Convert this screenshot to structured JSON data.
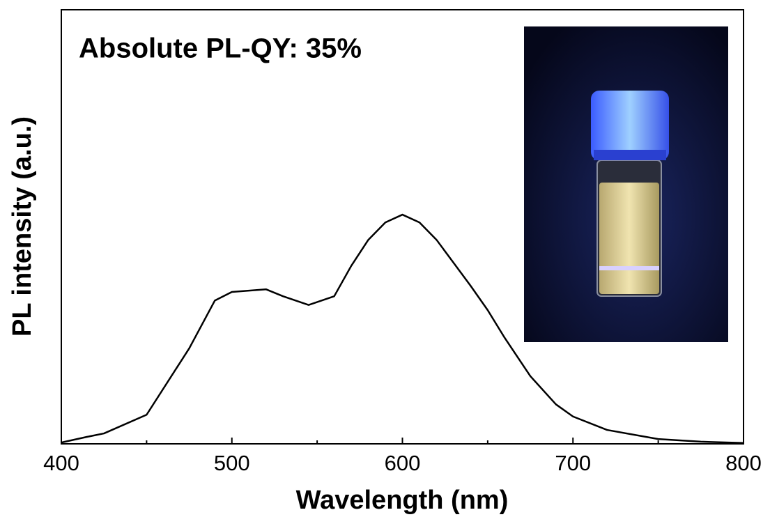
{
  "chart_data": {
    "type": "line",
    "annotation": "Absolute PL-QY: 35%",
    "xlabel": "Wavelength (nm)",
    "ylabel": "PL intensity (a.u.)",
    "x": [
      400,
      415,
      425,
      450,
      475,
      490,
      500,
      520,
      530,
      545,
      560,
      570,
      580,
      590,
      600,
      610,
      620,
      640,
      650,
      660,
      675,
      690,
      700,
      720,
      750,
      775,
      800
    ],
    "values": [
      0.003,
      0.016,
      0.024,
      0.067,
      0.22,
      0.33,
      0.35,
      0.356,
      0.34,
      0.32,
      0.34,
      0.41,
      0.47,
      0.51,
      0.528,
      0.51,
      0.47,
      0.364,
      0.308,
      0.244,
      0.156,
      0.091,
      0.063,
      0.032,
      0.011,
      0.005,
      0.002
    ],
    "color": "#000000",
    "xlim": [
      400,
      800
    ],
    "ylim": [
      0,
      1
    ],
    "xticks": [
      400,
      500,
      600,
      700,
      800
    ],
    "xminorticks": [
      450,
      550,
      650,
      750
    ]
  }
}
